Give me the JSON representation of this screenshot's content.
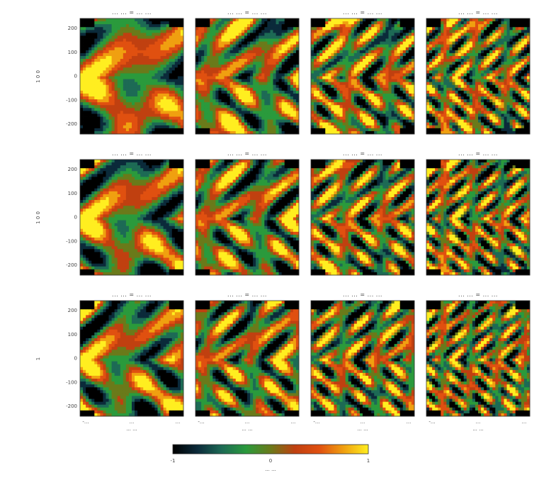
{
  "figure": {
    "row_labels": [
      "1 0 0",
      "1 0 0",
      "1"
    ]
  },
  "chart_data": {
    "type": "heatmap",
    "panel_titles": [
      [
        "... ... = ... ...",
        "... ... = ... ...",
        "... ... = ... ...",
        "... ... = ... ..."
      ],
      [
        "... ... = ... ...",
        "... ... = ... ...",
        "... ... = ... ...",
        "... ... = ... ..."
      ],
      [
        "... ... = ... ...",
        "... ... = ... ...",
        "... ... = ... ...",
        "... ... = ... ..."
      ]
    ],
    "y_ticks": [
      "200",
      "100",
      "0",
      "-100",
      "-200"
    ],
    "x_ticks": [
      "-... ",
      "...",
      "..."
    ],
    "xlabel": "... ...",
    "colorbar": {
      "min_label": "-1",
      "mid_label": "0",
      "max_label": "1",
      "label": "... ...",
      "colors": [
        "#000000",
        "#0b2a3a",
        "#1d6a55",
        "#2a9a3c",
        "#6a7a1a",
        "#c04010",
        "#e05010",
        "#f0a010",
        "#ffee20"
      ]
    },
    "grid": false,
    "rows": 3,
    "cols": 4
  }
}
